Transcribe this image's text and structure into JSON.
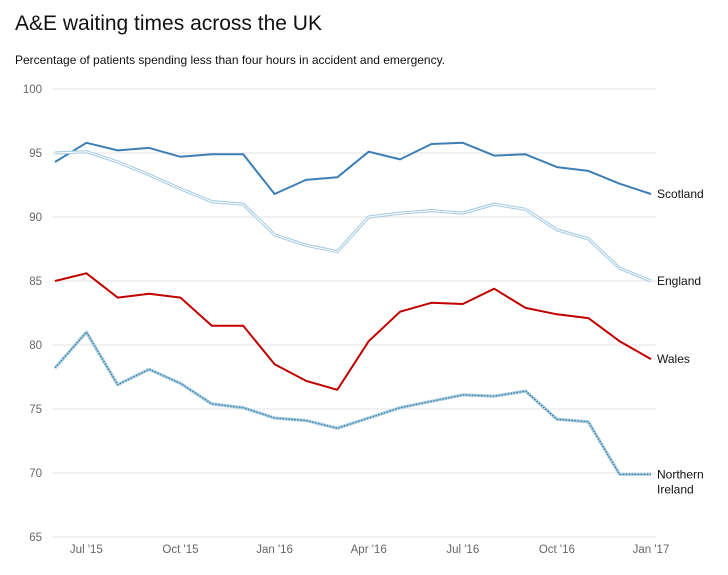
{
  "title": "A&E waiting times across the UK",
  "subtitle": "Percentage of patients spending less than four hours in accident and emergency.",
  "chart_data": {
    "type": "line",
    "title": "A&E waiting times across the UK",
    "subtitle": "Percentage of patients spending less than four hours in accident and emergency.",
    "xlabel": "",
    "ylabel": "",
    "ylim": [
      65,
      100
    ],
    "yticks": [
      65,
      70,
      75,
      80,
      85,
      90,
      95,
      100
    ],
    "x": [
      "Jun 2015",
      "Jul 2015",
      "Aug 2015",
      "Sep 2015",
      "Oct 2015",
      "Nov 2015",
      "Dec 2015",
      "Jan 2016",
      "Feb 2016",
      "Mar 2016",
      "Apr 2016",
      "May 2016",
      "Jun 2016",
      "Jul 2016",
      "Aug 2016",
      "Sep 2016",
      "Oct 2016",
      "Nov 2016",
      "Dec 2016",
      "Jan 2017"
    ],
    "xtick_labels": [
      "Jul '15",
      "Oct '15",
      "Jan '16",
      "Apr '16",
      "Jul '16",
      "Oct '16",
      "Jan '17"
    ],
    "grid": true,
    "legend": "inline labels at right end of each line",
    "series": [
      {
        "name": "Scotland",
        "color": "#3d7fb5",
        "style": "solid",
        "values": [
          94.3,
          95.8,
          95.2,
          95.4,
          94.7,
          94.9,
          94.9,
          91.8,
          92.9,
          93.1,
          95.1,
          94.5,
          95.7,
          95.8,
          94.8,
          94.9,
          93.9,
          93.6,
          92.6,
          91.8
        ]
      },
      {
        "name": "England",
        "color": "#a8cde3",
        "style": "double",
        "values": [
          95.0,
          95.1,
          94.3,
          93.3,
          92.2,
          91.2,
          91.0,
          88.6,
          87.8,
          87.3,
          90.0,
          90.3,
          90.5,
          90.3,
          91.0,
          90.6,
          89.0,
          88.3,
          86.0,
          85.0
        ]
      },
      {
        "name": "Wales",
        "color": "#c00000",
        "style": "solid",
        "values": [
          85.0,
          85.6,
          83.7,
          84.0,
          83.7,
          81.5,
          81.5,
          78.5,
          77.2,
          76.5,
          80.3,
          82.6,
          83.3,
          83.2,
          84.4,
          82.9,
          82.4,
          82.1,
          80.3,
          78.9
        ]
      },
      {
        "name": "Northern Ireland",
        "label_lines": [
          "Northern",
          "Ireland"
        ],
        "color": "#3a7fa6",
        "style": "dotted",
        "values": [
          78.2,
          81.0,
          76.9,
          78.1,
          77.0,
          75.4,
          75.1,
          74.3,
          74.1,
          73.5,
          74.3,
          75.1,
          75.6,
          76.1,
          76.0,
          76.4,
          74.2,
          74.0,
          69.9,
          69.9
        ]
      }
    ]
  }
}
